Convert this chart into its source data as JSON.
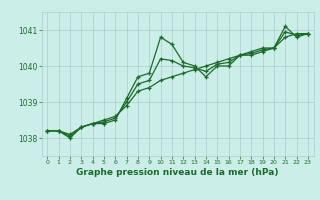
{
  "title": "Graphe pression niveau de la mer (hPa)",
  "background_color": "#cceee8",
  "grid_color": "#aacccc",
  "line_color": "#1a6b2a",
  "xlim": [
    -0.5,
    23.5
  ],
  "ylim": [
    1037.5,
    1041.5
  ],
  "yticks": [
    1038,
    1039,
    1040,
    1041
  ],
  "xticks": [
    0,
    1,
    2,
    3,
    4,
    5,
    6,
    7,
    8,
    9,
    10,
    11,
    12,
    13,
    14,
    15,
    16,
    17,
    18,
    19,
    20,
    21,
    22,
    23
  ],
  "series1": {
    "x": [
      0,
      1,
      2,
      3,
      4,
      5,
      6,
      7,
      8,
      9,
      10,
      11,
      12,
      13,
      14,
      15,
      16,
      17,
      18,
      19,
      20,
      21,
      22,
      23
    ],
    "y": [
      1038.2,
      1038.2,
      1038.0,
      1038.3,
      1038.4,
      1038.4,
      1038.5,
      1039.1,
      1039.7,
      1039.8,
      1040.8,
      1040.6,
      1040.1,
      1040.0,
      1039.7,
      1040.0,
      1040.0,
      1040.3,
      1040.4,
      1040.5,
      1040.5,
      1041.1,
      1040.8,
      1040.9
    ]
  },
  "series2": {
    "x": [
      0,
      1,
      2,
      3,
      4,
      5,
      6,
      7,
      8,
      9,
      10,
      11,
      12,
      13,
      14,
      15,
      16,
      17,
      18,
      19,
      20,
      21,
      22,
      23
    ],
    "y": [
      1038.2,
      1038.2,
      1038.1,
      1038.3,
      1038.4,
      1038.5,
      1038.6,
      1038.9,
      1039.3,
      1039.4,
      1039.6,
      1039.7,
      1039.8,
      1039.9,
      1040.0,
      1040.1,
      1040.2,
      1040.3,
      1040.3,
      1040.4,
      1040.5,
      1040.8,
      1040.9,
      1040.9
    ]
  },
  "series3": {
    "x": [
      0,
      1,
      2,
      3,
      4,
      5,
      6,
      7,
      8,
      9,
      10,
      11,
      12,
      13,
      14,
      15,
      16,
      17,
      18,
      19,
      20,
      21,
      22,
      23
    ],
    "y": [
      1038.2,
      1038.2,
      1038.05,
      1038.3,
      1038.4,
      1038.45,
      1038.55,
      1039.0,
      1039.5,
      1039.6,
      1040.2,
      1040.15,
      1040.0,
      1039.95,
      1039.85,
      1040.05,
      1040.1,
      1040.3,
      1040.35,
      1040.45,
      1040.5,
      1040.95,
      1040.85,
      1040.9
    ]
  },
  "xlabel_fontsize": 6.5,
  "ytick_fontsize": 5.5,
  "xtick_fontsize": 4.5
}
